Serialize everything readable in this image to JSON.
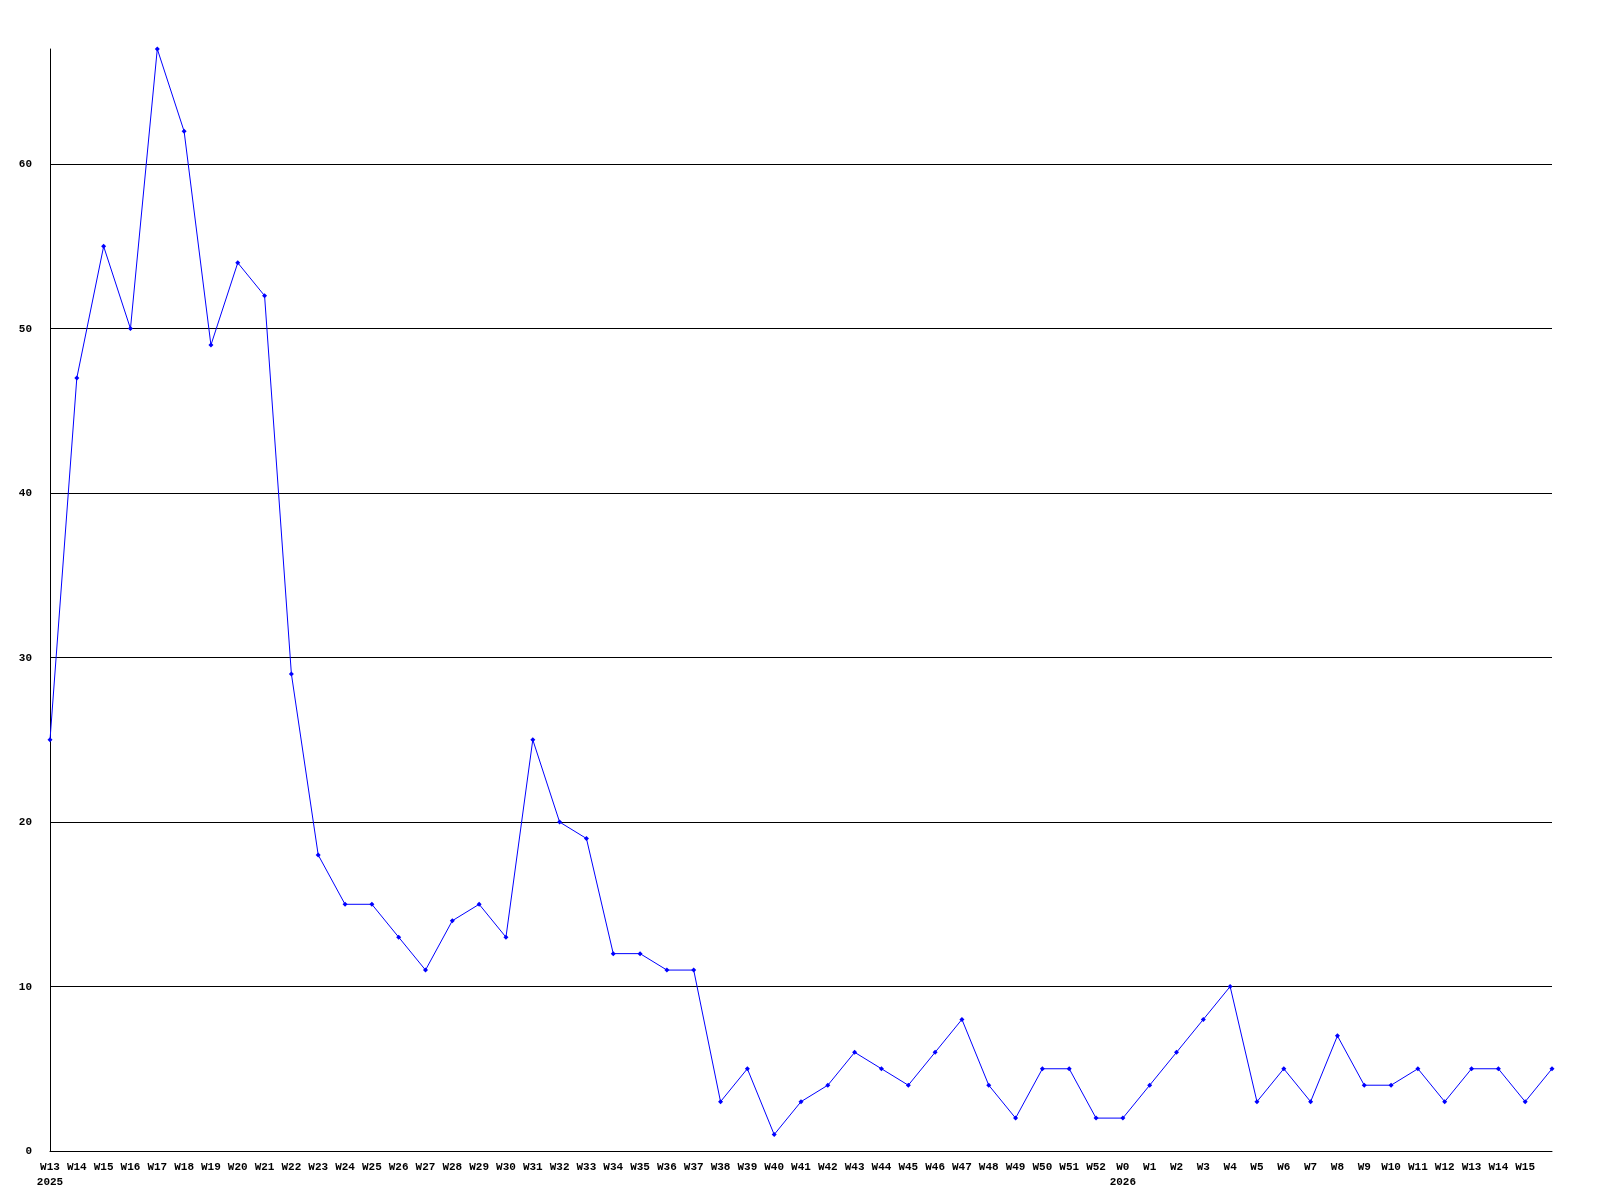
{
  "chart_data": {
    "type": "line",
    "categories": [
      "W13\n2025",
      "W14",
      "W15",
      "W16",
      "W17",
      "W18",
      "W19",
      "W20",
      "W21",
      "W22",
      "W23",
      "W24",
      "W25",
      "W26",
      "W27",
      "W28",
      "W29",
      "W30",
      "W31",
      "W32",
      "W33",
      "W34",
      "W35",
      "W36",
      "W37",
      "W38",
      "W39",
      "W40",
      "W41",
      "W42",
      "W43",
      "W44",
      "W45",
      "W46",
      "W47",
      "W48",
      "W49",
      "W50",
      "W51",
      "W52",
      "W0\n2026",
      "W1",
      "W2",
      "W3",
      "W4",
      "W5",
      "W6",
      "W7",
      "W8",
      "W9",
      "W10",
      "W11",
      "W12",
      "W13",
      "W14",
      "W15",
      null
    ],
    "values": [
      25,
      47,
      55,
      50,
      67,
      62,
      49,
      54,
      52,
      29,
      18,
      15,
      15,
      13,
      11,
      14,
      15,
      13,
      25,
      20,
      19,
      12,
      12,
      11,
      11,
      3,
      5,
      1,
      3,
      4,
      6,
      5,
      4,
      6,
      8,
      4,
      2,
      5,
      5,
      2,
      2,
      4,
      6,
      8,
      10,
      3,
      5,
      3,
      7,
      4,
      4,
      5,
      3,
      5,
      5,
      3,
      5
    ],
    "color": "#0000ff",
    "ylim": [
      0,
      67
    ],
    "yticks": [
      0,
      10,
      20,
      30,
      40,
      50,
      60
    ],
    "grid": "y",
    "marker": "diamond",
    "line_style": "solid"
  }
}
